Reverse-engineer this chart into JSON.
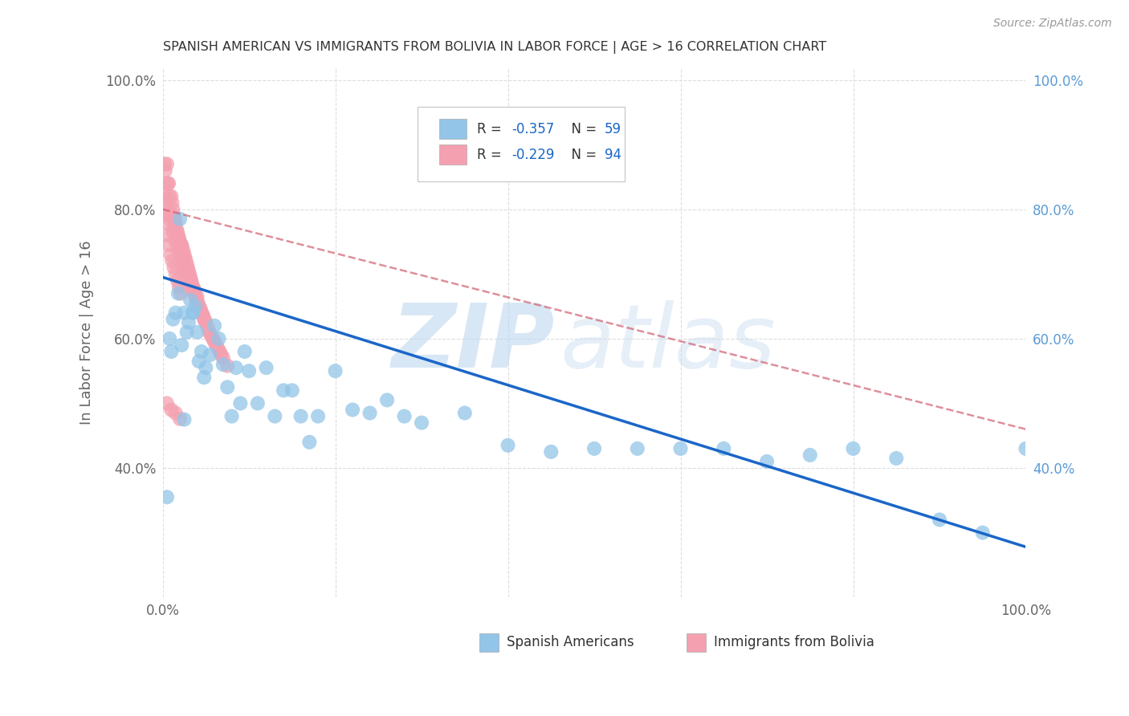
{
  "title": "SPANISH AMERICAN VS IMMIGRANTS FROM BOLIVIA IN LABOR FORCE | AGE > 16 CORRELATION CHART",
  "source": "Source: ZipAtlas.com",
  "ylabel": "In Labor Force | Age > 16",
  "watermark_zip": "ZIP",
  "watermark_atlas": "atlas",
  "blue_color": "#92C5E8",
  "pink_color": "#F4A0B0",
  "blue_line_color": "#1B66C8",
  "pink_line_color": "#D06070",
  "legend_label_blue": "Spanish Americans",
  "legend_label_pink": "Immigrants from Bolivia",
  "blue_scatter_x": [
    0.005,
    0.008,
    0.01,
    0.012,
    0.015,
    0.018,
    0.02,
    0.022,
    0.025,
    0.028,
    0.03,
    0.032,
    0.035,
    0.038,
    0.04,
    0.042,
    0.045,
    0.048,
    0.05,
    0.055,
    0.06,
    0.065,
    0.07,
    0.075,
    0.08,
    0.085,
    0.09,
    0.095,
    0.1,
    0.11,
    0.12,
    0.13,
    0.14,
    0.15,
    0.16,
    0.17,
    0.18,
    0.2,
    0.22,
    0.24,
    0.26,
    0.28,
    0.3,
    0.35,
    0.4,
    0.45,
    0.5,
    0.55,
    0.6,
    0.65,
    0.7,
    0.75,
    0.8,
    0.85,
    0.9,
    0.95,
    1.0,
    0.025,
    0.035
  ],
  "blue_scatter_y": [
    0.355,
    0.6,
    0.58,
    0.63,
    0.64,
    0.67,
    0.785,
    0.59,
    0.64,
    0.61,
    0.625,
    0.66,
    0.64,
    0.65,
    0.61,
    0.565,
    0.58,
    0.54,
    0.555,
    0.575,
    0.62,
    0.6,
    0.56,
    0.525,
    0.48,
    0.555,
    0.5,
    0.58,
    0.55,
    0.5,
    0.555,
    0.48,
    0.52,
    0.52,
    0.48,
    0.44,
    0.48,
    0.55,
    0.49,
    0.485,
    0.505,
    0.48,
    0.47,
    0.485,
    0.435,
    0.425,
    0.43,
    0.43,
    0.43,
    0.43,
    0.41,
    0.42,
    0.43,
    0.415,
    0.32,
    0.3,
    0.43,
    0.475,
    0.64
  ],
  "pink_scatter_x": [
    0.002,
    0.003,
    0.004,
    0.005,
    0.006,
    0.007,
    0.008,
    0.009,
    0.01,
    0.011,
    0.012,
    0.013,
    0.014,
    0.015,
    0.016,
    0.017,
    0.018,
    0.019,
    0.02,
    0.021,
    0.022,
    0.023,
    0.024,
    0.025,
    0.026,
    0.027,
    0.028,
    0.029,
    0.03,
    0.031,
    0.032,
    0.033,
    0.034,
    0.035,
    0.036,
    0.037,
    0.038,
    0.039,
    0.04,
    0.041,
    0.042,
    0.043,
    0.044,
    0.045,
    0.046,
    0.047,
    0.048,
    0.049,
    0.05,
    0.052,
    0.054,
    0.056,
    0.058,
    0.06,
    0.062,
    0.064,
    0.066,
    0.068,
    0.07,
    0.075,
    0.003,
    0.005,
    0.007,
    0.009,
    0.011,
    0.013,
    0.015,
    0.017,
    0.019,
    0.021,
    0.003,
    0.006,
    0.009,
    0.012,
    0.015,
    0.018,
    0.021,
    0.024,
    0.027,
    0.03,
    0.004,
    0.008,
    0.012,
    0.016,
    0.02,
    0.024,
    0.028,
    0.032,
    0.036,
    0.04,
    0.005,
    0.01,
    0.015,
    0.02
  ],
  "pink_scatter_y": [
    0.87,
    0.86,
    0.84,
    0.87,
    0.84,
    0.84,
    0.82,
    0.79,
    0.82,
    0.81,
    0.8,
    0.79,
    0.785,
    0.78,
    0.77,
    0.765,
    0.76,
    0.755,
    0.75,
    0.745,
    0.745,
    0.74,
    0.735,
    0.73,
    0.725,
    0.72,
    0.715,
    0.71,
    0.705,
    0.7,
    0.695,
    0.69,
    0.685,
    0.68,
    0.675,
    0.67,
    0.665,
    0.66,
    0.658,
    0.655,
    0.65,
    0.648,
    0.645,
    0.64,
    0.638,
    0.635,
    0.63,
    0.628,
    0.625,
    0.618,
    0.61,
    0.605,
    0.6,
    0.595,
    0.59,
    0.585,
    0.58,
    0.575,
    0.57,
    0.558,
    0.78,
    0.76,
    0.745,
    0.73,
    0.72,
    0.71,
    0.7,
    0.69,
    0.68,
    0.67,
    0.82,
    0.8,
    0.785,
    0.765,
    0.75,
    0.735,
    0.72,
    0.705,
    0.692,
    0.678,
    0.81,
    0.79,
    0.77,
    0.752,
    0.738,
    0.72,
    0.705,
    0.69,
    0.678,
    0.665,
    0.5,
    0.49,
    0.485,
    0.476
  ],
  "blue_line_x": [
    0.0,
    1.0
  ],
  "blue_line_y": [
    0.695,
    0.278
  ],
  "pink_line_x": [
    0.0,
    1.0
  ],
  "pink_line_y": [
    0.8,
    0.46
  ],
  "xlim": [
    0.0,
    1.0
  ],
  "ylim": [
    0.2,
    1.02
  ],
  "yticks": [
    0.4,
    0.6,
    0.8,
    1.0
  ],
  "ytick_labels": [
    "40.0%",
    "60.0%",
    "80.0%",
    "100.0%"
  ],
  "xticks": [
    0.0,
    0.2,
    0.4,
    0.6,
    0.8,
    1.0
  ],
  "xtick_labels": [
    "0.0%",
    "",
    "",
    "",
    "",
    "100.0%"
  ],
  "background_color": "#FFFFFF",
  "grid_color": "#DDDDDD",
  "title_color": "#333333",
  "tick_color_right": "#5B9BD5",
  "tick_color_left": "#666666"
}
